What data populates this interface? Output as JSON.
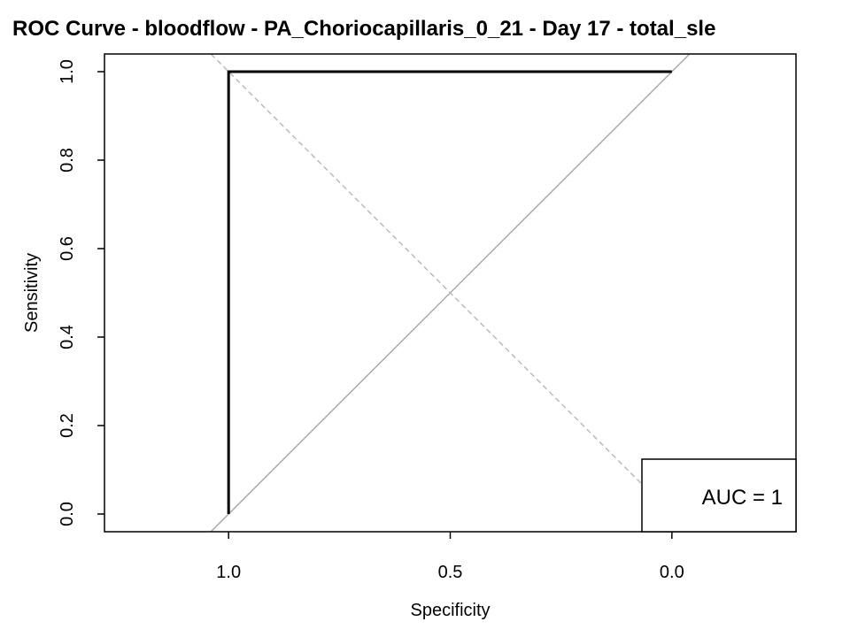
{
  "chart_data": {
    "type": "line",
    "title": "ROC Curve - bloodflow - PA_Choriocapillaris_0_21 - Day 17 - total_sle",
    "xlabel": "Specificity",
    "ylabel": "Sensitivity",
    "x_reversed": true,
    "xlim": [
      1.28,
      -0.28
    ],
    "ylim": [
      -0.04,
      1.04
    ],
    "x_ticks": [
      1.0,
      0.5,
      0.0
    ],
    "x_tick_labels": [
      "1.0",
      "0.5",
      "0.0"
    ],
    "y_ticks": [
      0.0,
      0.2,
      0.4,
      0.6,
      0.8,
      1.0
    ],
    "y_tick_labels": [
      "0.0",
      "0.2",
      "0.4",
      "0.6",
      "0.8",
      "1.0"
    ],
    "grid": false,
    "series": [
      {
        "specificity": [
          1.0,
          1.0,
          0.0
        ],
        "sensitivity": [
          0.0,
          1.0,
          1.0
        ],
        "color": "#000000"
      }
    ],
    "reference_lines": [
      {
        "kind": "diagonal",
        "style": "solid",
        "color": "#aaaaaa"
      },
      {
        "kind": "anti-diagonal",
        "style": "dashed",
        "color": "#bbbbbb"
      }
    ],
    "legend": {
      "text": "AUC = 1",
      "position": "bottom-right"
    }
  }
}
